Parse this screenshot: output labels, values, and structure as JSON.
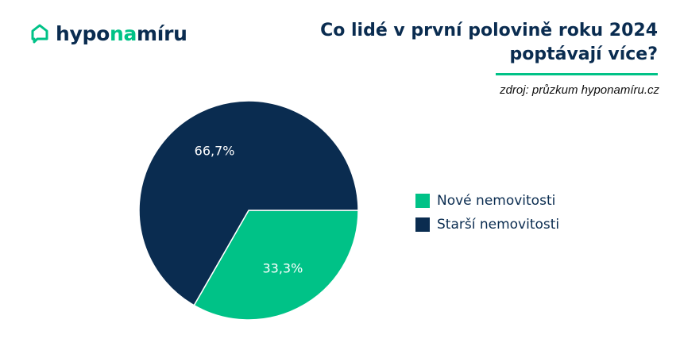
{
  "brand": {
    "part1": "hypo",
    "part2": "na",
    "part3": "míru",
    "dark_color": "#0a2c50",
    "accent_color": "#00c287"
  },
  "header": {
    "title_line1": "Co lidé v první polovině roku 2024",
    "title_line2": "poptávají více?",
    "source": "zdroj: průzkum hyponamíru.cz"
  },
  "chart_data": {
    "type": "pie",
    "title": "Co lidé v první polovině roku 2024 poptávají více?",
    "slices": [
      {
        "label": "Nové nemovitosti",
        "value": 33.3,
        "value_label": "33,3%",
        "color": "#00c287"
      },
      {
        "label": "Starší nemovitosti",
        "value": 66.7,
        "value_label": "66,7%",
        "color": "#0a2c50"
      }
    ],
    "legend": "right"
  }
}
